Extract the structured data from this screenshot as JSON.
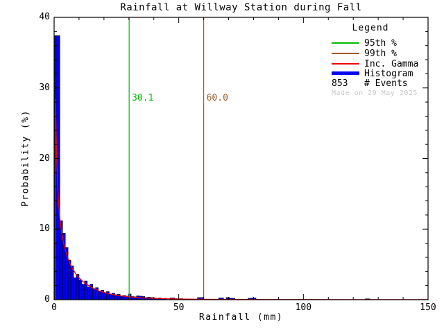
{
  "title": "Rainfall at Willway Station during Fall",
  "watermark": "Made on 29 May 2025",
  "legend": {
    "title": "Legend",
    "entries": [
      {
        "label": "95th %",
        "type": "line",
        "color": "#00bb00"
      },
      {
        "label": "99th %",
        "type": "line",
        "color": "#a05a28"
      },
      {
        "label": "Inc. Gamma",
        "type": "line",
        "color": "#ee0000"
      },
      {
        "label": "Histogram",
        "type": "thick-line",
        "color": "#0000ee"
      },
      {
        "label": "# Events",
        "type": "value",
        "value": "853"
      }
    ]
  },
  "chart_data": {
    "type": "bar",
    "title": "Rainfall at Willway Station during Fall",
    "xlabel": "Rainfall (mm)",
    "ylabel": "Probability (%)",
    "xlim": [
      0,
      150
    ],
    "ylim": [
      0,
      40
    ],
    "x_major_ticks": [
      0,
      50,
      100,
      150
    ],
    "x_minor_step": 10,
    "y_major_ticks": [
      0,
      10,
      20,
      30,
      40
    ],
    "y_minor_step": 2,
    "grid": false,
    "legend_position": "top-right",
    "n_events": 853,
    "colors": {
      "histogram": "#0000ee",
      "bar_outline": "#000000",
      "gamma": "#ee0000",
      "p95": "#00bb00",
      "p99": "#a05a28",
      "axis": "#000000",
      "watermark": "#c9c9c9"
    },
    "percentile_lines": [
      {
        "name": "95th percentile",
        "value": 30.1,
        "label": "30.1",
        "color": "#00bb00"
      },
      {
        "name": "99th percentile",
        "value": 60.0,
        "label": "60.0",
        "color": "#a05a28"
      }
    ],
    "bars_format": "[x_start_mm, width_mm, probability_pct]",
    "bars": [
      [
        0.25,
        2.05,
        37.4
      ],
      [
        2.3,
        1.1,
        11.2
      ],
      [
        3.4,
        1.1,
        9.4
      ],
      [
        4.5,
        1.1,
        7.4
      ],
      [
        5.6,
        1.1,
        5.6
      ],
      [
        6.7,
        1.1,
        4.8
      ],
      [
        7.8,
        1.1,
        3.1
      ],
      [
        8.9,
        1.1,
        3.6
      ],
      [
        10.0,
        1.1,
        2.8
      ],
      [
        11.1,
        1.1,
        2.2
      ],
      [
        12.2,
        1.1,
        2.65
      ],
      [
        13.3,
        1.1,
        1.8
      ],
      [
        14.4,
        1.1,
        2.2
      ],
      [
        15.5,
        1.1,
        1.5
      ],
      [
        16.6,
        1.1,
        1.7
      ],
      [
        17.7,
        1.1,
        1.2
      ],
      [
        18.8,
        1.1,
        1.35
      ],
      [
        19.9,
        1.1,
        1.0
      ],
      [
        21.0,
        1.1,
        1.15
      ],
      [
        22.1,
        1.1,
        0.8
      ],
      [
        23.2,
        1.1,
        0.95
      ],
      [
        24.3,
        1.1,
        0.7
      ],
      [
        25.4,
        1.1,
        0.75
      ],
      [
        26.5,
        1.1,
        0.55
      ],
      [
        27.6,
        1.1,
        0.6
      ],
      [
        28.7,
        1.1,
        0.5
      ],
      [
        29.8,
        1.1,
        0.8
      ],
      [
        30.9,
        1.1,
        0.45
      ],
      [
        32.0,
        1.1,
        0.4
      ],
      [
        33.1,
        1.1,
        0.55
      ],
      [
        34.2,
        1.1,
        0.5
      ],
      [
        35.3,
        1.1,
        0.45
      ],
      [
        36.4,
        1.1,
        0.3
      ],
      [
        37.5,
        1.1,
        0.35
      ],
      [
        38.6,
        1.1,
        0.3
      ],
      [
        39.7,
        1.1,
        0.25
      ],
      [
        40.8,
        1.1,
        0.2
      ],
      [
        41.9,
        1.1,
        0.25
      ],
      [
        43.0,
        1.1,
        0.15
      ],
      [
        44.1,
        1.1,
        0.2
      ],
      [
        46.5,
        1.8,
        0.25
      ],
      [
        48.3,
        1.1,
        0.15
      ],
      [
        50.4,
        1.2,
        0.15
      ],
      [
        57.5,
        2.4,
        0.3
      ],
      [
        66.0,
        2.0,
        0.25
      ],
      [
        69.0,
        1.5,
        0.3
      ],
      [
        70.5,
        2.0,
        0.2
      ],
      [
        77.8,
        1.6,
        0.2
      ],
      [
        79.4,
        1.6,
        0.25
      ],
      [
        124.8,
        1.9,
        0.12
      ]
    ],
    "gamma_curve_format": "[x_mm, probability_pct]",
    "gamma_curve": [
      [
        0.52,
        0.0
      ],
      [
        0.58,
        28.4
      ],
      [
        0.75,
        24.5
      ],
      [
        1.0,
        20.5
      ],
      [
        1.3,
        17.2
      ],
      [
        1.7,
        14.3
      ],
      [
        2.2,
        11.9
      ],
      [
        2.8,
        10.0
      ],
      [
        3.5,
        8.5
      ],
      [
        4.5,
        7.0
      ],
      [
        5.5,
        5.9
      ],
      [
        7,
        4.6
      ],
      [
        9,
        3.5
      ],
      [
        11,
        2.75
      ],
      [
        13,
        2.2
      ],
      [
        15,
        1.75
      ],
      [
        18,
        1.25
      ],
      [
        21,
        0.92
      ],
      [
        25,
        0.62
      ],
      [
        30,
        0.4
      ],
      [
        35,
        0.27
      ],
      [
        40,
        0.19
      ],
      [
        45,
        0.14
      ],
      [
        50,
        0.1
      ],
      [
        60,
        0.06
      ],
      [
        70,
        0.04
      ],
      [
        80,
        0.03
      ],
      [
        100,
        0.015
      ],
      [
        125,
        0.008
      ],
      [
        150,
        0.005
      ]
    ]
  }
}
